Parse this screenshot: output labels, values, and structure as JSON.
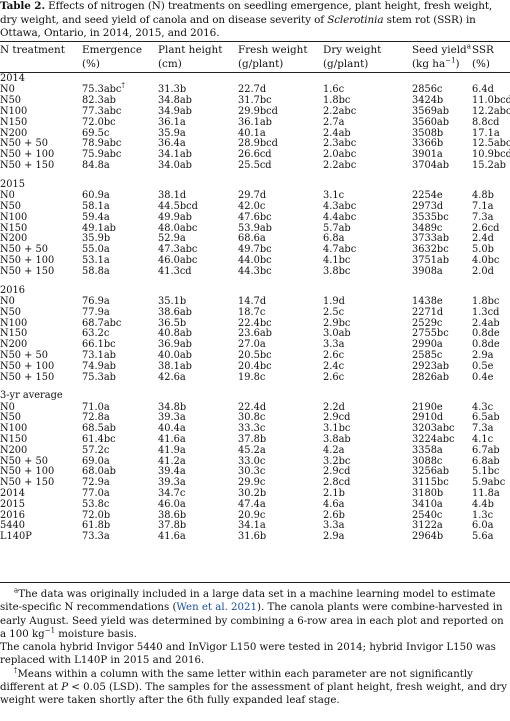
{
  "caption": {
    "label": "Table 2.",
    "pre": " Effects of nitrogen (N) treatments on seedling emergence, plant height, fresh weight, dry weight, and seed yield of canola and on disease severity of ",
    "italic": "Sclerotinia",
    "post": " stem rot (SSR) in Ottawa, Ontario, in 2014, 2015, and 2016."
  },
  "headers": {
    "c0": [
      "N treatment",
      ""
    ],
    "c1": [
      "Emergence",
      "(%)"
    ],
    "c2": [
      "Plant height",
      "(cm)"
    ],
    "c3": [
      "Fresh weight",
      "(g/plant)"
    ],
    "c4": [
      "Dry weight",
      "(g/plant)"
    ],
    "c5a": "Seed yield",
    "c5sup": "a",
    "c5b": "(kg ha",
    "c5c": "−1",
    "c5d": ")",
    "c6": [
      "SSR",
      "(%)"
    ]
  },
  "sections": [
    {
      "title": "2014",
      "rows": [
        [
          "N0",
          "75.3abc",
          "31.3b",
          "22.7d",
          "1.6c",
          "2856c",
          "6.4d"
        ],
        [
          "N50",
          "82.3ab",
          "34.8ab",
          "31.7bc",
          "1.8bc",
          "3424b",
          "11.0bcd"
        ],
        [
          "N100",
          "77.3abc",
          "34.9ab",
          "29.9bcd",
          "2.2abc",
          "3569ab",
          "12.2abc"
        ],
        [
          "N150",
          "72.0bc",
          "36.1a",
          "36.1ab",
          "2.7a",
          "3560ab",
          "8.8cd"
        ],
        [
          "N200",
          "69.5c",
          "35.9a",
          "40.1a",
          "2.4ab",
          "3508b",
          "17.1a"
        ],
        [
          "N50 + 50",
          "78.9abc",
          "36.4a",
          "28.9bcd",
          "2.3abc",
          "3366b",
          "12.5abc"
        ],
        [
          "N50 + 100",
          "75.9abc",
          "34.1ab",
          "26.6cd",
          "2.0abc",
          "3901a",
          "10.9bcd"
        ],
        [
          "N50 + 150",
          "84.8a",
          "34.0ab",
          "25.5cd",
          "2.2abc",
          "3704ab",
          "15.2ab"
        ]
      ]
    },
    {
      "title": "2015",
      "rows": [
        [
          "N0",
          "60.9a",
          "38.1d",
          "29.7d",
          "3.1c",
          "2254e",
          "4.8b"
        ],
        [
          "N50",
          "58.1a",
          "44.5bcd",
          "42.0c",
          "4.3abc",
          "2973d",
          "7.1a"
        ],
        [
          "N100",
          "59.4a",
          "49.9ab",
          "47.6bc",
          "4.4abc",
          "3535bc",
          "7.3a"
        ],
        [
          "N150",
          "49.1ab",
          "48.0abc",
          "53.9ab",
          "5.7ab",
          "3489c",
          "2.6cd"
        ],
        [
          "N200",
          "35.9b",
          "52.9a",
          "68.6a",
          "6.8a",
          "3733ab",
          "2.4d"
        ],
        [
          "N50 + 50",
          "55.0a",
          "47.3abc",
          "49.7bc",
          "4.7abc",
          "3632bc",
          "5.0b"
        ],
        [
          "N50 + 100",
          "53.1a",
          "46.0abc",
          "44.0bc",
          "4.1bc",
          "3751ab",
          "4.0bc"
        ],
        [
          "N50 + 150",
          "58.8a",
          "41.3cd",
          "44.3bc",
          "3.8bc",
          "3908a",
          "2.0d"
        ]
      ]
    },
    {
      "title": "2016",
      "rows": [
        [
          "N0",
          "76.9a",
          "35.1b",
          "14.7d",
          "1.9d",
          "1438e",
          "1.8bc"
        ],
        [
          "N50",
          "77.9a",
          "38.6ab",
          "18.7c",
          "2.5c",
          "2271d",
          "1.3cd"
        ],
        [
          "N100",
          "68.7abc",
          "36.5b",
          "22.4bc",
          "2.9bc",
          "2529c",
          "2.4ab"
        ],
        [
          "N150",
          "63.2c",
          "40.8ab",
          "23.6ab",
          "3.0ab",
          "2755bc",
          "0.8de"
        ],
        [
          "N200",
          "66.1bc",
          "36.9ab",
          "27.0a",
          "3.3a",
          "2990a",
          "0.8de"
        ],
        [
          "N50 + 50",
          "73.1ab",
          "40.0ab",
          "20.5bc",
          "2.6c",
          "2585c",
          "2.9a"
        ],
        [
          "N50 + 100",
          "74.9ab",
          "38.1ab",
          "20.4bc",
          "2.4c",
          "2923ab",
          "0.5e"
        ],
        [
          "N50 + 150",
          "75.3ab",
          "42.6a",
          "19.8c",
          "2.6c",
          "2826ab",
          "0.4e"
        ]
      ]
    },
    {
      "title": "3-yr average",
      "rows": [
        [
          "N0",
          "71.0a",
          "34.8b",
          "22.4d",
          "2.2d",
          "2190e",
          "4.3c"
        ],
        [
          "N50",
          "72.8a",
          "39.3a",
          "30.8c",
          "2.9cd",
          "2910d",
          "6.5ab"
        ],
        [
          "N100",
          "68.5ab",
          "40.4a",
          "33.3c",
          "3.1bc",
          "3203abc",
          "7.3a"
        ],
        [
          "N150",
          "61.4bc",
          "41.6a",
          "37.8b",
          "3.8ab",
          "3224abc",
          "4.1c"
        ],
        [
          "N200",
          "57.2c",
          "41.9a",
          "45.2a",
          "4.2a",
          "3358a",
          "6.7ab"
        ],
        [
          "N50 + 50",
          "69.0a",
          "41.2a",
          "33.0c",
          "3.2bc",
          "3088c",
          "6.8ab"
        ],
        [
          "N50 + 100",
          "68.0ab",
          "39.4a",
          "30.3c",
          "2.9cd",
          "3256ab",
          "5.1bc"
        ],
        [
          "N50 + 150",
          "72.9a",
          "39.3a",
          "29.9c",
          "2.8cd",
          "3115bc",
          "5.9abc"
        ],
        [
          "2014",
          "77.0a",
          "34.7c",
          "30.2b",
          "2.1b",
          "3180b",
          "11.8a"
        ],
        [
          "2015",
          "53.8c",
          "46.0a",
          "47.4a",
          "4.6a",
          "3410a",
          "4.4b"
        ],
        [
          "2016",
          "72.0b",
          "38.6b",
          "20.9c",
          "2.6b",
          "2540c",
          "1.3c"
        ],
        [
          "5440",
          "61.8b",
          "37.8b",
          "34.1a",
          "3.3a",
          "3122a",
          "6.0a"
        ],
        [
          "L140P",
          "73.3a",
          "41.6a",
          "31.6b",
          "2.9a",
          "2964b",
          "5.6a"
        ]
      ]
    }
  ],
  "dagger": "†",
  "footnotes": {
    "a_sup": "a",
    "a_pre": "The data was originally included in a large data set in a machine learning model to estimate site-specific N recommendations (",
    "a_link": "Wen et al. 2021",
    "a_mid": "). The canola plants were combine-harvested in early August. Seed yield was determined by combining a 6-row area in each plot and reported on a 100 kg",
    "a_sup2": "−1",
    "a_post": " moisture basis.",
    "a2": "The canola hybrid Invigor 5440 and InVigor L150 were tested in 2014; hybrid Invigor L150 was replaced with L140P in 2015 and 2016.",
    "b_sup": "†",
    "b_pre": "Means within a column with the same letter within each parameter are not significantly different at ",
    "b_italic": "P",
    "b_post": " < 0.05 (LSD). The samples for the assessment of plant height, fresh weight, and dry weight were taken shortly after the 6th fully expanded leaf stage."
  }
}
